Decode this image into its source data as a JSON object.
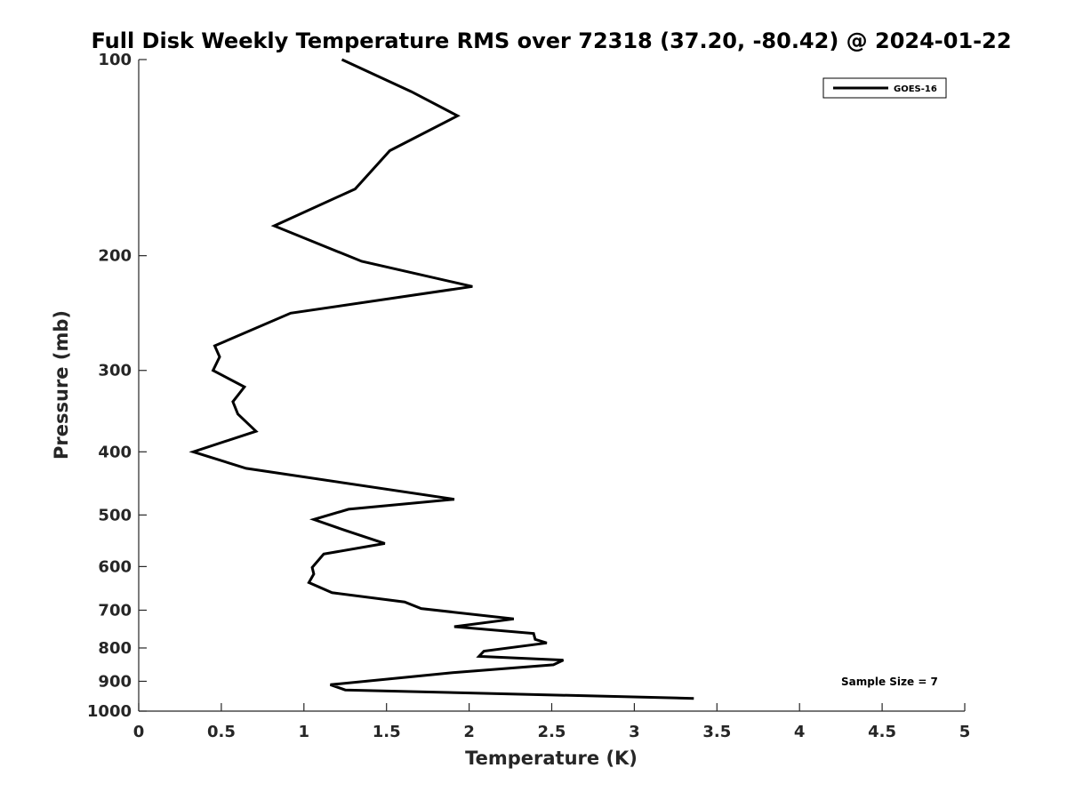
{
  "chart_data": {
    "type": "line",
    "title": "Full Disk Weekly Temperature RMS over 72318 (37.20, -80.42) @ 2024-01-22",
    "xlabel": "Temperature (K)",
    "ylabel": "Pressure (mb)",
    "xlim": [
      0,
      5
    ],
    "ylim": [
      1000,
      100
    ],
    "y_scale": "log",
    "y_reversed": true,
    "grid": false,
    "legend_position": "top-right",
    "x_ticks": [
      "0",
      "0.5",
      "1",
      "1.5",
      "2",
      "2.5",
      "3",
      "3.5",
      "4",
      "4.5",
      "5"
    ],
    "y_ticks": [
      "100",
      "200",
      "300",
      "400",
      "500",
      "600",
      "700",
      "800",
      "900",
      "1000"
    ],
    "annotation": "Sample Size = 7",
    "series": [
      {
        "name": "GOES-16",
        "color": "#000000",
        "x": [
          1.23,
          1.65,
          1.93,
          1.52,
          1.31,
          0.82,
          1.35,
          2.02,
          0.92,
          0.46,
          0.49,
          0.45,
          0.64,
          0.57,
          0.6,
          0.71,
          0.33,
          0.65,
          1.91,
          1.27,
          1.06,
          1.25,
          1.49,
          1.12,
          1.05,
          1.06,
          1.03,
          1.17,
          1.61,
          1.71,
          2.27,
          1.91,
          2.39,
          2.4,
          2.47,
          2.09,
          2.06,
          2.57,
          2.51,
          1.9,
          1.16,
          1.25,
          3.36
        ],
        "y": [
          100,
          112,
          122,
          138,
          158,
          180,
          204,
          223,
          245,
          275,
          286,
          300,
          318,
          335,
          350,
          372,
          400,
          424,
          473,
          490,
          508,
          528,
          553,
          574,
          602,
          616,
          635,
          658,
          680,
          696,
          722,
          742,
          760,
          776,
          786,
          809,
          824,
          835,
          849,
          873,
          911,
          928,
          956
        ]
      }
    ]
  }
}
